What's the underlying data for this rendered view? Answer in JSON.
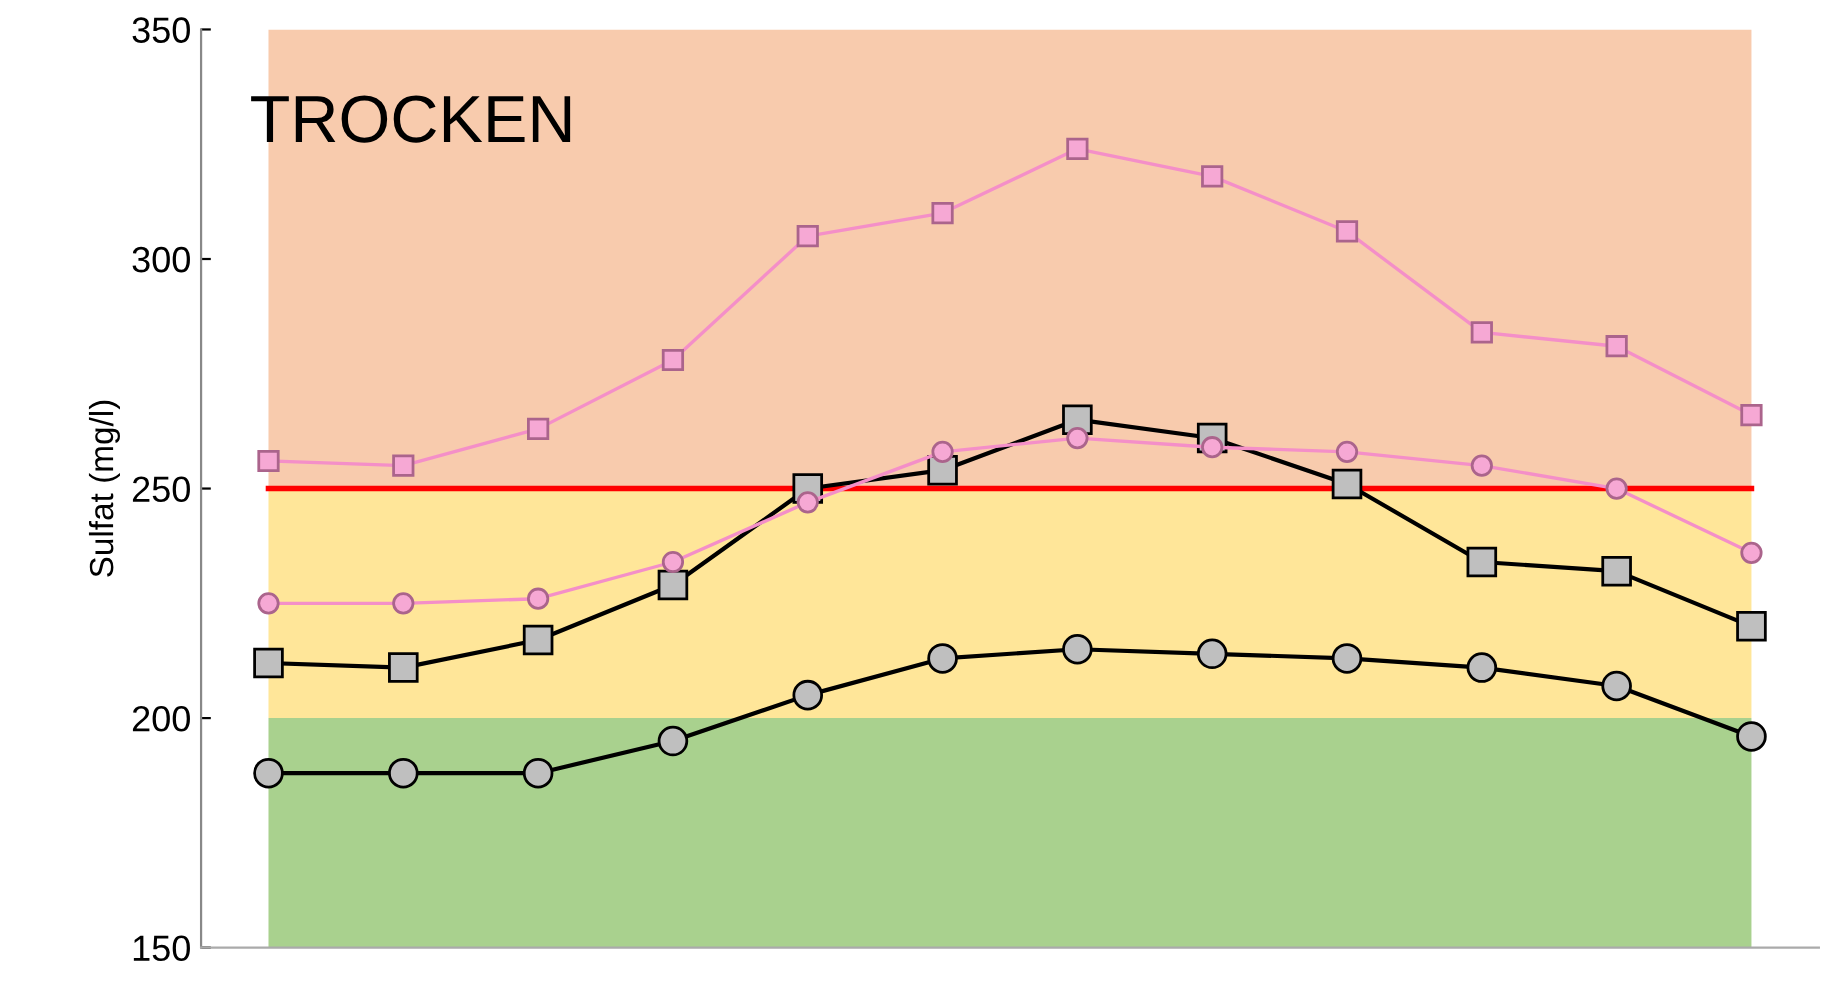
{
  "chart_data": {
    "type": "line",
    "ylabel": "Sulfat (mg/l)",
    "annotations": [
      "TROCKEN"
    ],
    "categories": [
      null,
      null,
      null,
      null,
      null,
      null,
      null,
      null,
      null,
      null,
      null,
      null
    ],
    "series": [
      {
        "color": "#f48fc8",
        "marker": "square",
        "values": [
          256,
          255,
          263,
          278,
          305,
          310,
          324,
          318,
          306,
          284,
          281,
          266
        ]
      },
      {
        "color": "#f48fc8",
        "marker": "circle",
        "values": [
          225,
          225,
          226,
          234,
          247,
          258,
          261,
          259,
          258,
          255,
          250,
          236
        ]
      },
      {
        "color": "#000000",
        "marker": "square",
        "values": [
          212,
          211,
          217,
          229,
          250,
          254,
          265,
          261,
          251,
          234,
          232,
          220
        ]
      },
      {
        "color": "#000000",
        "marker": "circle",
        "values": [
          188,
          188,
          188,
          195,
          205,
          213,
          215,
          214,
          213,
          211,
          207,
          196
        ]
      }
    ],
    "bands": [
      {
        "axis": "y",
        "from": 150,
        "to": 200,
        "color": "#a9d18e"
      },
      {
        "axis": "y",
        "from": 200,
        "to": 250,
        "color": "#ffe699"
      },
      {
        "axis": "y",
        "from": 250,
        "to": 350,
        "color": "#f8cbad"
      }
    ],
    "ref_lines": [
      {
        "axis": "y",
        "value": 250,
        "color": "#ff0000"
      }
    ],
    "ylim": [
      150,
      350
    ],
    "yticks": [
      150,
      200,
      250,
      300,
      350
    ],
    "grid": false,
    "legend": false,
    "line_style": "solid"
  }
}
